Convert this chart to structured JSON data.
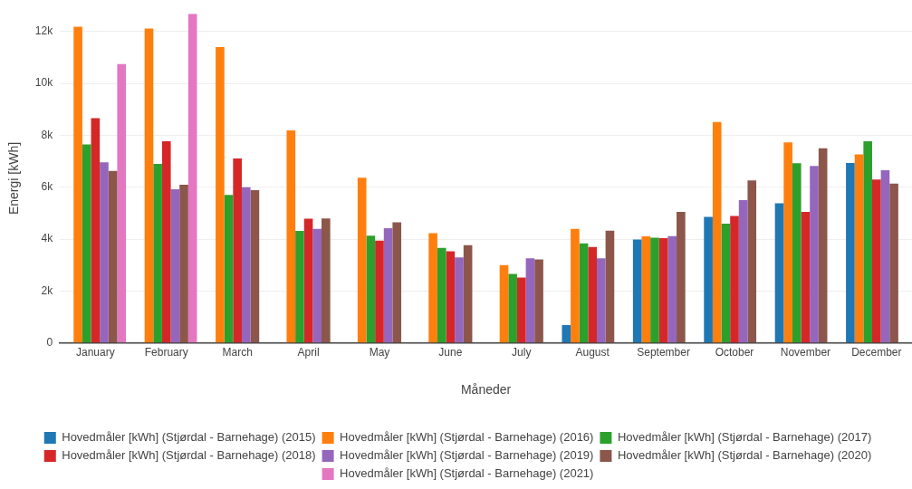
{
  "chart_data": {
    "type": "bar",
    "xlabel": "Måneder",
    "ylabel": "Energi [kWh]",
    "categories": [
      "January",
      "February",
      "March",
      "April",
      "May",
      "June",
      "July",
      "August",
      "September",
      "October",
      "November",
      "December"
    ],
    "series": [
      {
        "name": "Hovedmåler [kWh] (Stjørdal - Barnehage) (2015)",
        "color": "#1f77b4",
        "values": [
          null,
          null,
          null,
          null,
          null,
          null,
          null,
          690,
          3990,
          4860,
          5380,
          6930
        ]
      },
      {
        "name": "Hovedmåler [kWh] (Stjørdal - Barnehage) (2016)",
        "color": "#ff7f0e",
        "values": [
          12180,
          12110,
          11400,
          8190,
          6370,
          4230,
          3000,
          4400,
          4110,
          8510,
          7730,
          7260
        ]
      },
      {
        "name": "Hovedmåler [kWh] (Stjørdal - Barnehage) (2017)",
        "color": "#2ca02c",
        "values": [
          7650,
          6900,
          5700,
          4320,
          4130,
          3660,
          2660,
          3840,
          4060,
          4600,
          6920,
          7770
        ]
      },
      {
        "name": "Hovedmåler [kWh] (Stjørdal - Barnehage) (2018)",
        "color": "#d62728",
        "values": [
          8660,
          7770,
          7110,
          4790,
          3940,
          3530,
          2520,
          3700,
          4040,
          4890,
          5050,
          6300
        ]
      },
      {
        "name": "Hovedmåler [kWh] (Stjørdal - Barnehage) (2019)",
        "color": "#9467bd",
        "values": [
          6960,
          5920,
          6000,
          4400,
          4420,
          3300,
          3260,
          3260,
          4120,
          5500,
          6820,
          6650
        ]
      },
      {
        "name": "Hovedmåler [kWh] (Stjørdal - Barnehage) (2020)",
        "color": "#8c564b",
        "values": [
          6630,
          6100,
          5890,
          4800,
          4650,
          3770,
          3220,
          4330,
          5050,
          6260,
          7500,
          6140
        ]
      },
      {
        "name": "Hovedmåler [kWh] (Stjørdal - Barnehage) (2021)",
        "color": "#e377c2",
        "values": [
          10740,
          12680,
          null,
          null,
          null,
          null,
          null,
          null,
          null,
          null,
          null,
          null
        ]
      }
    ],
    "ylim": [
      0,
      12680
    ],
    "yticks": [
      0,
      {
        "value": 2000,
        "label": "2k"
      },
      {
        "value": 4000,
        "label": "4k"
      },
      {
        "value": 6000,
        "label": "6k"
      },
      {
        "value": 8000,
        "label": "8k"
      },
      {
        "value": 10000,
        "label": "10k"
      },
      {
        "value": 12000,
        "label": "12k"
      }
    ],
    "grid": "y",
    "legend": "bottom"
  }
}
